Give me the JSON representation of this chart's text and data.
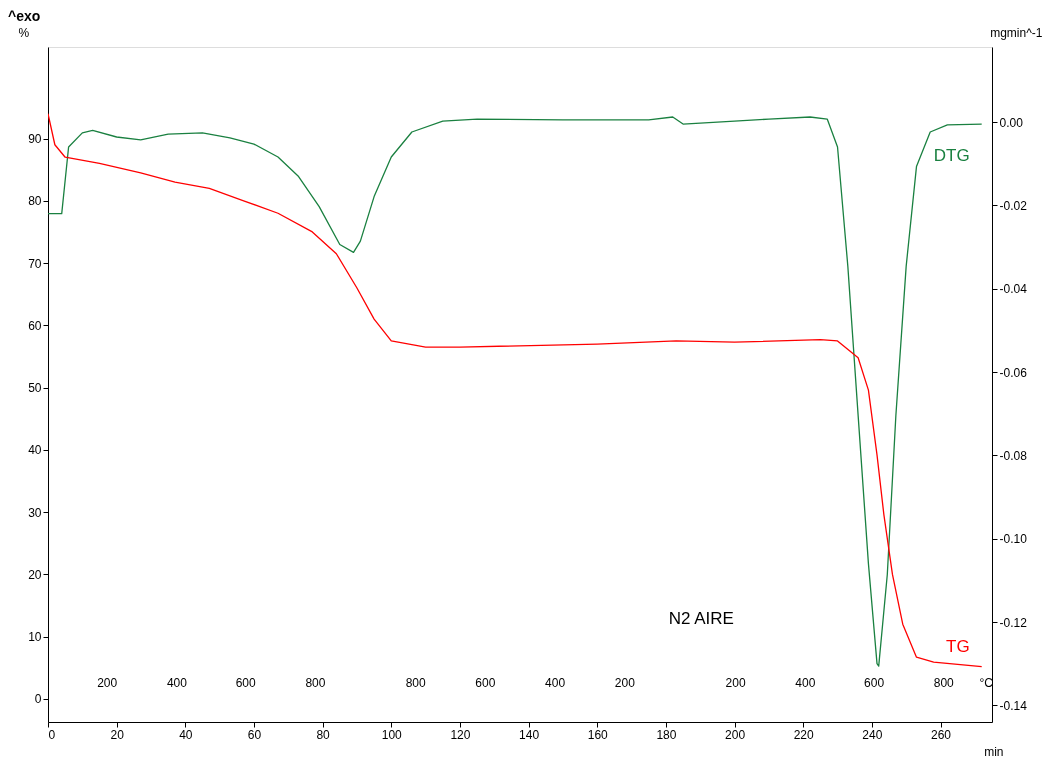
{
  "chart_data": {
    "type": "line",
    "xlabel": "min",
    "ylabel": "%",
    "y2label": "mgmin^-1",
    "annotations": [
      "^exo",
      "N2    AIRE",
      "°C",
      "200",
      "400",
      "600",
      "800",
      "800",
      "600",
      "400",
      "200",
      "200",
      "400",
      "600",
      "800"
    ],
    "xlim": [
      0,
      275
    ],
    "xticks": [
      0,
      20,
      40,
      60,
      80,
      100,
      120,
      140,
      160,
      180,
      200,
      220,
      240,
      260
    ],
    "ylim": [
      -3.7,
      104.7
    ],
    "yticks": [
      0,
      10,
      20,
      30,
      40,
      50,
      60,
      70,
      80,
      90
    ],
    "y2lim": [
      -0.144,
      0.018
    ],
    "y2ticks": [
      {
        "value": 0.0,
        "label": "0.00"
      },
      {
        "value": -0.02,
        "label": "-0.02"
      },
      {
        "value": -0.04,
        "label": "-0.04"
      },
      {
        "value": -0.06,
        "label": "-0.06"
      },
      {
        "value": -0.08,
        "label": "-0.08"
      },
      {
        "value": -0.1,
        "label": "-0.10"
      },
      {
        "value": -0.12,
        "label": "-0.12"
      },
      {
        "value": -0.14,
        "label": "-0.14"
      }
    ],
    "grid": false,
    "legend": false,
    "line_style": "solid",
    "marker": "none",
    "series": [
      {
        "name": "DTG",
        "color": "#1a8040",
        "axis": "y2",
        "x": [
          0,
          4,
          6,
          10,
          13,
          20,
          27,
          35,
          45,
          53,
          60,
          67,
          73,
          79,
          85,
          89,
          91,
          95,
          100,
          106,
          115,
          125,
          150,
          175,
          182,
          185,
          200,
          210,
          222,
          227,
          230,
          233,
          236,
          239,
          241.5,
          242,
          244.5,
          247,
          250,
          253,
          257,
          262,
          272
        ],
        "values": [
          -0.022,
          -0.022,
          -0.006,
          -0.0026,
          -0.002,
          -0.0036,
          -0.0043,
          -0.0029,
          -0.0026,
          -0.0038,
          -0.0053,
          -0.0084,
          -0.0131,
          -0.0203,
          -0.0294,
          -0.0313,
          -0.0286,
          -0.0179,
          -0.0084,
          -0.0024,
          0.0002,
          0.0007,
          0.0005,
          0.0005,
          0.0012,
          -0.0005,
          0.0002,
          0.0007,
          0.0012,
          0.0007,
          -0.006,
          -0.0346,
          -0.0704,
          -0.106,
          -0.13,
          -0.1306,
          -0.1086,
          -0.0704,
          -0.0346,
          -0.0107,
          -0.0024,
          -0.0007,
          -0.0005
        ]
      },
      {
        "name": "TG",
        "color": "#ff0000",
        "axis": "y",
        "x": [
          0,
          2,
          5,
          15,
          27,
          37,
          47,
          57,
          67,
          77,
          84,
          90,
          95,
          100,
          110,
          120,
          160,
          183,
          200,
          225,
          230,
          236,
          239,
          241.5,
          243.5,
          246,
          249,
          253,
          258,
          272
        ],
        "values": [
          94,
          89,
          87,
          86,
          84.5,
          83,
          82,
          80,
          78,
          75,
          71.5,
          66,
          61,
          57.5,
          56.5,
          56.5,
          57,
          57.5,
          57.3,
          57.7,
          57.5,
          54.8,
          49.6,
          39.2,
          29.6,
          20,
          12,
          6.7,
          5.9,
          5.2
        ]
      }
    ]
  }
}
